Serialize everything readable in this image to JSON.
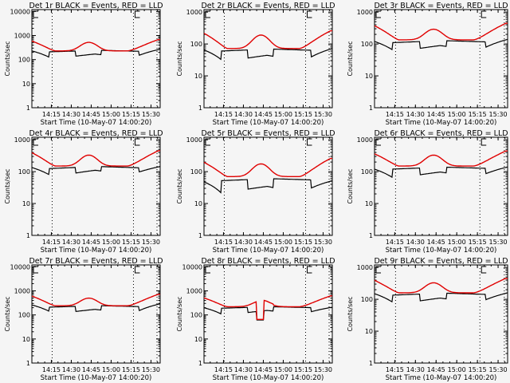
{
  "figure": {
    "background": "#f5f5f5",
    "event_color": "#000000",
    "lld_color": "#e00000"
  },
  "chart_data": [
    {
      "type": "line",
      "title": "Det 1r BLACK = Events, RED = LLD",
      "xlabel": "Start Time (10-May-07 14:00:20)",
      "ylabel": "Counts/sec",
      "ylim": [
        1,
        12000
      ],
      "yscale": "log",
      "yticks": [
        "1",
        "10",
        "100",
        "1000",
        "10000"
      ],
      "xticks": [
        "14:15",
        "14:30",
        "14:45",
        "15:00",
        "15:15",
        "15:30"
      ],
      "markers_E": true,
      "series": [
        {
          "name": "Events",
          "color": "#000000",
          "base": 210,
          "dip": 0.55,
          "bump": 0.95,
          "start": 230,
          "end": 270
        },
        {
          "name": "LLD",
          "color": "#e00000",
          "min": 230,
          "peak": 520,
          "start": 600,
          "end": 660
        }
      ]
    },
    {
      "type": "line",
      "title": "Det 2r BLACK = Events, RED = LLD",
      "xlabel": "Start Time (10-May-07 14:00:20)",
      "ylabel": "Counts/sec",
      "ylim": [
        1,
        1200
      ],
      "yscale": "log",
      "yticks": [
        "1",
        "10",
        "100",
        "1000"
      ],
      "xticks": [
        "14:15",
        "14:30",
        "14:45",
        "15:00",
        "15:15",
        "15:30"
      ],
      "markers_E": true,
      "series": [
        {
          "name": "Events",
          "color": "#000000",
          "base": 60,
          "dip": 0.5,
          "bump": 0.9,
          "start": 65,
          "end": 72
        },
        {
          "name": "LLD",
          "color": "#e00000",
          "min": 72,
          "peak": 190,
          "start": 220,
          "end": 250
        }
      ]
    },
    {
      "type": "line",
      "title": "Det 3r BLACK = Events, RED = LLD",
      "xlabel": "Start Time (10-May-07 14:00:20)",
      "ylabel": "Counts/sec",
      "ylim": [
        1,
        1200
      ],
      "yscale": "log",
      "yticks": [
        "1",
        "10",
        "100",
        "1000"
      ],
      "xticks": [
        "14:15",
        "14:30",
        "14:45",
        "15:00",
        "15:15",
        "15:30"
      ],
      "markers_E": true,
      "series": [
        {
          "name": "Events",
          "color": "#000000",
          "base": 110,
          "dip": 0.55,
          "bump": 0.9,
          "start": 120,
          "end": 140
        },
        {
          "name": "LLD",
          "color": "#e00000",
          "min": 135,
          "peak": 290,
          "start": 380,
          "end": 430
        }
      ]
    },
    {
      "type": "line",
      "title": "Det 4r BLACK = Events, RED = LLD",
      "xlabel": "Start Time (10-May-07 14:00:20)",
      "ylabel": "Counts/sec",
      "ylim": [
        1,
        1200
      ],
      "yscale": "log",
      "yticks": [
        "1",
        "10",
        "100",
        "1000"
      ],
      "xticks": [
        "14:15",
        "14:30",
        "14:45",
        "15:00",
        "15:15",
        "15:30"
      ],
      "markers_E": true,
      "series": [
        {
          "name": "Events",
          "color": "#000000",
          "base": 125,
          "dip": 0.6,
          "bump": 0.9,
          "start": 135,
          "end": 145
        },
        {
          "name": "LLD",
          "color": "#e00000",
          "min": 150,
          "peak": 330,
          "start": 400,
          "end": 440
        }
      ]
    },
    {
      "type": "line",
      "title": "Det 5r BLACK = Events, RED = LLD",
      "xlabel": "Start Time (10-May-07 14:00:20)",
      "ylabel": "Counts/sec",
      "ylim": [
        1,
        1200
      ],
      "yscale": "log",
      "yticks": [
        "1",
        "10",
        "100",
        "1000"
      ],
      "xticks": [
        "14:15",
        "14:30",
        "14:45",
        "15:00",
        "15:15",
        "15:30"
      ],
      "markers_E": true,
      "series": [
        {
          "name": "Events",
          "color": "#000000",
          "base": 52,
          "dip": 0.45,
          "bump": 0.8,
          "start": 48,
          "end": 52
        },
        {
          "name": "LLD",
          "color": "#e00000",
          "min": 70,
          "peak": 175,
          "start": 200,
          "end": 250
        }
      ]
    },
    {
      "type": "line",
      "title": "Det 6r BLACK = Events, RED = LLD",
      "xlabel": "Start Time (10-May-07 14:00:20)",
      "ylabel": "Counts/sec",
      "ylim": [
        1,
        1200
      ],
      "yscale": "log",
      "yticks": [
        "1",
        "10",
        "100",
        "1000"
      ],
      "xticks": [
        "14:15",
        "14:30",
        "14:45",
        "15:00",
        "15:15",
        "15:30"
      ],
      "markers_E": true,
      "series": [
        {
          "name": "Events",
          "color": "#000000",
          "base": 120,
          "dip": 0.55,
          "bump": 0.85,
          "start": 120,
          "end": 140
        },
        {
          "name": "LLD",
          "color": "#e00000",
          "min": 150,
          "peak": 330,
          "start": 370,
          "end": 430
        }
      ]
    },
    {
      "type": "line",
      "title": "Det 7r BLACK = Events, RED = LLD",
      "xlabel": "Start Time (10-May-07 14:00:20)",
      "ylabel": "Counts/sec",
      "ylim": [
        1,
        12000
      ],
      "yscale": "log",
      "yticks": [
        "1",
        "10",
        "100",
        "1000",
        "10000"
      ],
      "xticks": [
        "14:15",
        "14:30",
        "14:45",
        "15:00",
        "15:15",
        "15:30"
      ],
      "markers_E": true,
      "series": [
        {
          "name": "Events",
          "color": "#000000",
          "base": 210,
          "dip": 0.55,
          "bump": 0.95,
          "start": 260,
          "end": 290
        },
        {
          "name": "LLD",
          "color": "#e00000",
          "min": 240,
          "peak": 500,
          "start": 620,
          "end": 700
        }
      ]
    },
    {
      "type": "line",
      "title": "Det 8r BLACK = Events, RED = LLD",
      "xlabel": "Start Time (10-May-07 14:00:20)",
      "ylabel": "Counts/sec",
      "ylim": [
        1,
        12000
      ],
      "yscale": "log",
      "yticks": [
        "1",
        "10",
        "100",
        "1000",
        "10000"
      ],
      "xticks": [
        "14:15",
        "14:30",
        "14:45",
        "15:00",
        "15:15",
        "15:30"
      ],
      "markers_E": true,
      "dropout": [
        14.66,
        14.76,
        65
      ],
      "series": [
        {
          "name": "Events",
          "color": "#000000",
          "base": 190,
          "dip": 0.55,
          "bump": 0.8,
          "start": 200,
          "end": 210
        },
        {
          "name": "LLD",
          "color": "#e00000",
          "min": 220,
          "peak": 380,
          "start": 520,
          "end": 600
        }
      ]
    },
    {
      "type": "line",
      "title": "Det 9r BLACK = Events, RED = LLD",
      "xlabel": "Start Time (10-May-07 14:00:20)",
      "ylabel": "Counts/sec",
      "ylim": [
        1,
        1200
      ],
      "yscale": "log",
      "yticks": [
        "1",
        "10",
        "100",
        "1000"
      ],
      "xticks": [
        "14:15",
        "14:30",
        "14:45",
        "15:00",
        "15:15",
        "15:30"
      ],
      "markers_E": true,
      "series": [
        {
          "name": "Events",
          "color": "#000000",
          "base": 135,
          "dip": 0.55,
          "bump": 0.85,
          "start": 150,
          "end": 160
        },
        {
          "name": "LLD",
          "color": "#e00000",
          "min": 160,
          "peak": 330,
          "start": 400,
          "end": 440
        }
      ]
    }
  ]
}
